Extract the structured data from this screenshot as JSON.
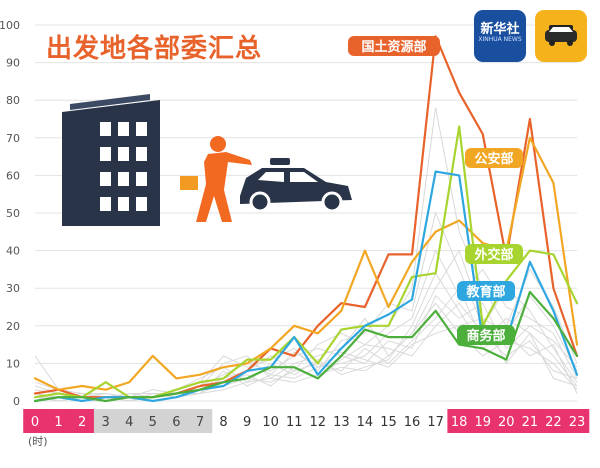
{
  "title": "出发地各部委汇总",
  "hour_unit": "(时)",
  "badges": {
    "xinhua_name": "新华社",
    "xinhua_sub": "XINHUA NEWS"
  },
  "colors": {
    "highlight_band": "#e8336f",
    "gray_band": "#d3d3d3",
    "background_lines": "#d9d9d9",
    "axis_text": "#555555",
    "title": "#e8632b"
  },
  "chart_data": {
    "type": "line",
    "title": "出发地各部委汇总",
    "xlabel": "(时)",
    "ylabel": "",
    "ylim": [
      0,
      100
    ],
    "yticks": [
      0,
      10,
      20,
      30,
      40,
      50,
      60,
      70,
      80,
      90,
      100
    ],
    "grid": true,
    "x": [
      0,
      1,
      2,
      3,
      4,
      5,
      6,
      7,
      8,
      9,
      10,
      11,
      12,
      13,
      14,
      15,
      16,
      17,
      18,
      19,
      20,
      21,
      22,
      23
    ],
    "x_tick_labels": [
      "0",
      "1",
      "2",
      "3",
      "4",
      "5",
      "6",
      "7",
      "8",
      "9",
      "10",
      "11",
      "12",
      "13",
      "14",
      "15",
      "16",
      "17",
      "18",
      "19",
      "20",
      "21",
      "22",
      "23"
    ],
    "x_band_style": [
      "pink",
      "pink",
      "pink",
      "gray",
      "gray",
      "gray",
      "gray",
      "gray",
      "none",
      "none",
      "none",
      "none",
      "none",
      "none",
      "none",
      "none",
      "none",
      "none",
      "pink",
      "pink",
      "pink",
      "pink",
      "pink",
      "pink"
    ],
    "series": [
      {
        "name": "国土资源部",
        "color": "#e8632b",
        "label_bg": "#e8632b",
        "values": [
          2,
          3,
          1,
          1,
          1,
          1,
          2,
          4,
          5,
          8,
          14,
          12,
          20,
          26,
          25,
          39,
          39,
          97,
          82,
          71,
          38,
          75,
          30,
          12
        ]
      },
      {
        "name": "公安部",
        "color": "#f2a724",
        "label_bg": "#f2a724",
        "values": [
          6,
          3,
          4,
          3,
          5,
          12,
          6,
          7,
          9,
          10,
          14,
          20,
          18,
          24,
          40,
          25,
          37,
          45,
          48,
          42,
          40,
          70,
          58,
          15
        ]
      },
      {
        "name": "外交部",
        "color": "#a8d430",
        "label_bg": "#a8d430",
        "values": [
          1,
          2,
          1,
          5,
          1,
          1,
          3,
          5,
          6,
          11,
          11,
          17,
          10,
          19,
          20,
          20,
          33,
          34,
          73,
          20,
          32,
          40,
          39,
          26
        ]
      },
      {
        "name": "教育部",
        "color": "#2ea7e0",
        "label_bg": "#2ea7e0",
        "values": [
          0,
          1,
          0,
          1,
          1,
          0,
          1,
          3,
          4,
          8,
          9,
          17,
          7,
          14,
          20,
          23,
          27,
          61,
          60,
          16,
          16,
          37,
          24,
          7
        ]
      },
      {
        "name": "商务部",
        "color": "#4caf3c",
        "label_bg": "#4caf3c",
        "values": [
          0,
          1,
          1,
          0,
          1,
          1,
          2,
          3,
          5,
          6,
          9,
          9,
          6,
          12,
          19,
          17,
          17,
          24,
          15,
          14,
          11,
          29,
          22,
          12
        ]
      }
    ],
    "background_series": [
      [
        12,
        3,
        2,
        2,
        1,
        1,
        2,
        3,
        6,
        8,
        12,
        8,
        15,
        18,
        15,
        20,
        30,
        78,
        45,
        30,
        20,
        35,
        25,
        10
      ],
      [
        4,
        2,
        1,
        1,
        2,
        2,
        1,
        4,
        10,
        12,
        6,
        10,
        12,
        14,
        22,
        12,
        18,
        30,
        40,
        22,
        18,
        28,
        20,
        8
      ],
      [
        2,
        1,
        2,
        1,
        1,
        3,
        2,
        2,
        8,
        4,
        7,
        6,
        9,
        10,
        12,
        18,
        22,
        40,
        28,
        35,
        25,
        22,
        18,
        6
      ],
      [
        1,
        0,
        1,
        0,
        1,
        1,
        3,
        5,
        12,
        9,
        11,
        14,
        8,
        16,
        18,
        26,
        24,
        50,
        35,
        20,
        30,
        24,
        14,
        5
      ],
      [
        3,
        2,
        0,
        1,
        0,
        2,
        1,
        3,
        4,
        6,
        5,
        8,
        10,
        8,
        14,
        10,
        16,
        22,
        30,
        16,
        22,
        18,
        12,
        4
      ],
      [
        0,
        1,
        1,
        2,
        1,
        1,
        2,
        4,
        7,
        10,
        8,
        12,
        14,
        12,
        10,
        16,
        14,
        28,
        22,
        26,
        14,
        20,
        16,
        9
      ],
      [
        5,
        3,
        2,
        1,
        0,
        1,
        2,
        2,
        3,
        5,
        6,
        5,
        7,
        9,
        8,
        12,
        18,
        26,
        18,
        12,
        16,
        14,
        10,
        3
      ],
      [
        1,
        1,
        0,
        0,
        1,
        0,
        1,
        2,
        5,
        7,
        4,
        9,
        6,
        11,
        15,
        14,
        12,
        20,
        26,
        18,
        12,
        16,
        8,
        6
      ],
      [
        2,
        0,
        1,
        1,
        2,
        1,
        3,
        6,
        9,
        5,
        10,
        7,
        11,
        7,
        9,
        11,
        20,
        34,
        24,
        14,
        18,
        12,
        15,
        2
      ],
      [
        0,
        1,
        0,
        1,
        0,
        2,
        2,
        3,
        6,
        11,
        7,
        13,
        9,
        13,
        11,
        9,
        15,
        18,
        20,
        22,
        10,
        18,
        6,
        4
      ]
    ]
  }
}
